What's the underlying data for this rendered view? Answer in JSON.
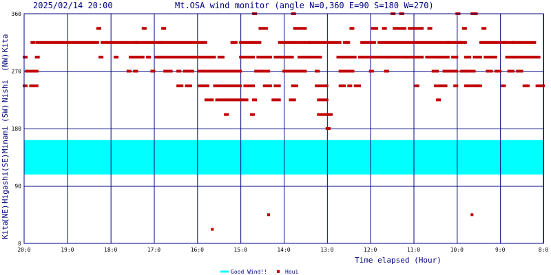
{
  "chart_data": {
    "type": "scatter",
    "timestamp": "2025/02/14 20:00",
    "title": "Mt.OSA wind monitor (angle N=0,360 E=90 S=180 W=270)",
    "xlabel": "Time elapsed (Hour)",
    "ylabel_sections": [
      "Kita",
      "(NE)",
      "Higashi",
      "(SE)",
      "Minami",
      "(SW)",
      "Nishi",
      "(NW)",
      "Kita"
    ],
    "x_tick_labels": [
      "20:0",
      "19:0",
      "18:0",
      "17:0",
      "16:0",
      "15:0",
      "14:0",
      "13:0",
      "12:0",
      "11:0",
      "10:0",
      "9:0",
      "8:0"
    ],
    "y_ticks": [
      0,
      90,
      180,
      270,
      360
    ],
    "ylim": [
      0,
      360
    ],
    "xlim": [
      0,
      12
    ],
    "x_direction": "hours elapsed from 20:00, right = earlier",
    "grid": true,
    "colors": {
      "good_wind": "#00ffff",
      "houi": "#c00000",
      "grid": "#000080"
    },
    "good_wind_band": [
      108,
      162
    ],
    "legend": [
      {
        "key": "good_wind",
        "label": "Good Wind!!"
      },
      {
        "key": "houi",
        "label": "Houi"
      }
    ],
    "series": [
      {
        "key": "houi",
        "runs": [
          [
            0.0,
            0.08,
            247
          ],
          [
            0.0,
            0.05,
            292
          ],
          [
            0.05,
            0.32,
            270
          ],
          [
            0.15,
            0.32,
            247
          ],
          [
            0.18,
            0.23,
            315
          ],
          [
            0.3,
            1.7,
            315
          ],
          [
            0.28,
            0.35,
            292
          ],
          [
            1.7,
            1.75,
            337
          ],
          [
            1.75,
            1.8,
            292
          ],
          [
            1.8,
            2.6,
            315
          ],
          [
            2.1,
            2.15,
            292
          ],
          [
            2.4,
            2.45,
            270
          ],
          [
            2.45,
            2.55,
            292
          ],
          [
            2.55,
            2.6,
            270
          ],
          [
            2.6,
            3.15,
            315
          ],
          [
            2.6,
            2.75,
            292
          ],
          [
            2.75,
            2.8,
            337
          ],
          [
            2.85,
            2.9,
            292
          ],
          [
            2.95,
            3.0,
            270
          ],
          [
            3.05,
            3.15,
            292
          ],
          [
            3.15,
            4.2,
            315
          ],
          [
            3.15,
            3.9,
            292
          ],
          [
            3.2,
            3.25,
            337
          ],
          [
            3.25,
            3.4,
            270
          ],
          [
            3.55,
            3.6,
            270
          ],
          [
            3.55,
            3.65,
            247
          ],
          [
            3.7,
            3.9,
            270
          ],
          [
            3.75,
            3.85,
            247
          ],
          [
            3.9,
            4.4,
            292
          ],
          [
            4.05,
            4.4,
            270
          ],
          [
            4.05,
            4.25,
            247
          ],
          [
            4.2,
            4.35,
            225
          ],
          [
            4.4,
            5.0,
            270
          ],
          [
            4.4,
            5.0,
            247
          ],
          [
            4.45,
            5.15,
            225
          ],
          [
            4.65,
            4.7,
            202
          ],
          [
            4.5,
            4.6,
            292
          ],
          [
            4.8,
            4.9,
            315
          ],
          [
            5.0,
            5.3,
            315
          ],
          [
            5.0,
            5.3,
            292
          ],
          [
            5.1,
            5.3,
            247
          ],
          [
            5.25,
            5.3,
            202
          ],
          [
            5.3,
            5.35,
            360
          ],
          [
            5.3,
            5.35,
            225
          ],
          [
            5.35,
            5.65,
            270
          ],
          [
            5.35,
            5.45,
            315
          ],
          [
            5.4,
            5.7,
            292
          ],
          [
            5.45,
            5.6,
            337
          ],
          [
            5.55,
            5.7,
            247
          ],
          [
            5.75,
            5.9,
            225
          ],
          [
            5.8,
            5.9,
            247
          ],
          [
            5.8,
            6.2,
            292
          ],
          [
            5.9,
            6.6,
            315
          ],
          [
            6.0,
            6.3,
            270
          ],
          [
            6.15,
            6.25,
            225
          ],
          [
            6.2,
            6.3,
            247
          ],
          [
            6.2,
            6.25,
            360
          ],
          [
            6.25,
            6.5,
            337
          ],
          [
            6.35,
            6.6,
            292
          ],
          [
            6.35,
            6.5,
            270
          ],
          [
            6.6,
            7.3,
            315
          ],
          [
            6.6,
            6.85,
            292
          ],
          [
            6.75,
            6.8,
            270
          ],
          [
            6.75,
            7.0,
            247
          ],
          [
            7.25,
            7.3,
            292
          ],
          [
            6.8,
            7.0,
            225
          ],
          [
            6.8,
            6.85,
            202
          ],
          [
            6.9,
            7.0,
            202
          ],
          [
            7.0,
            7.1,
            202
          ],
          [
            7.0,
            7.05,
            180
          ],
          [
            7.3,
            7.6,
            270
          ],
          [
            7.3,
            7.4,
            247
          ],
          [
            7.35,
            7.65,
            292
          ],
          [
            7.4,
            7.5,
            315
          ],
          [
            7.5,
            7.55,
            247
          ],
          [
            7.55,
            7.6,
            337
          ],
          [
            7.65,
            7.75,
            247
          ],
          [
            7.75,
            8.2,
            292
          ],
          [
            7.8,
            8.1,
            315
          ],
          [
            8.0,
            8.05,
            270
          ],
          [
            8.05,
            8.15,
            337
          ],
          [
            8.2,
            8.4,
            292
          ],
          [
            8.2,
            8.35,
            315
          ],
          [
            8.3,
            8.35,
            337
          ],
          [
            8.35,
            8.4,
            270
          ],
          [
            8.4,
            9.8,
            315
          ],
          [
            8.4,
            9.2,
            292
          ],
          [
            8.5,
            8.55,
            360
          ],
          [
            8.55,
            8.8,
            337
          ],
          [
            8.7,
            8.75,
            360
          ],
          [
            8.8,
            8.85,
            292
          ],
          [
            8.9,
            9.2,
            337
          ],
          [
            9.05,
            9.1,
            247
          ],
          [
            9.3,
            9.6,
            292
          ],
          [
            9.45,
            9.55,
            270
          ],
          [
            9.5,
            9.55,
            247
          ],
          [
            9.55,
            9.6,
            225
          ],
          [
            9.35,
            9.4,
            337
          ],
          [
            9.6,
            9.75,
            247
          ],
          [
            9.6,
            9.8,
            292
          ],
          [
            9.7,
            9.75,
            270
          ],
          [
            9.8,
            10.1,
            315
          ],
          [
            9.8,
            10.0,
            270
          ],
          [
            9.9,
            10.0,
            292
          ],
          [
            9.95,
            10.0,
            247
          ],
          [
            10.0,
            10.05,
            360
          ],
          [
            10.05,
            10.2,
            315
          ],
          [
            10.1,
            10.2,
            270
          ],
          [
            10.2,
            10.3,
            292
          ],
          [
            10.15,
            10.2,
            337
          ],
          [
            10.2,
            10.25,
            247
          ],
          [
            10.25,
            10.4,
            270
          ],
          [
            10.3,
            10.45,
            247
          ],
          [
            10.35,
            10.45,
            360
          ],
          [
            10.4,
            10.55,
            292
          ],
          [
            10.45,
            10.55,
            247
          ],
          [
            10.55,
            11.1,
            315
          ],
          [
            10.6,
            10.65,
            337
          ],
          [
            10.65,
            10.9,
            292
          ],
          [
            10.7,
            10.8,
            270
          ],
          [
            10.9,
            11.0,
            270
          ],
          [
            11.05,
            11.1,
            247
          ],
          [
            11.1,
            11.3,
            315
          ],
          [
            11.15,
            11.3,
            292
          ],
          [
            11.2,
            11.3,
            270
          ],
          [
            11.3,
            11.8,
            315
          ],
          [
            11.3,
            11.75,
            292
          ],
          [
            11.4,
            11.5,
            270
          ],
          [
            11.55,
            11.65,
            247
          ],
          [
            11.85,
            12.0,
            247
          ],
          [
            11.8,
            11.9,
            292
          ]
        ],
        "points": [
          [
            4.35,
            22
          ],
          [
            5.65,
            45
          ],
          [
            10.35,
            45
          ]
        ]
      }
    ]
  }
}
